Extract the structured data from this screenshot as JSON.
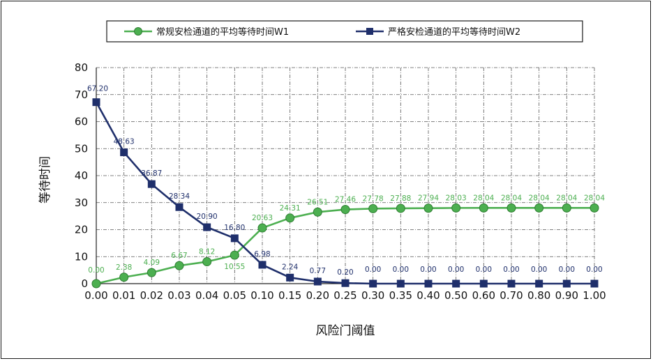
{
  "chart_data": {
    "type": "line",
    "title": "",
    "xlabel": "风险门阈值",
    "ylabel": "等待时间",
    "ylim": [
      0,
      80
    ],
    "yticks": [
      "0",
      "10",
      "20",
      "30",
      "40",
      "50",
      "60",
      "70",
      "80"
    ],
    "grid": true,
    "legend_position": "top",
    "x": [
      "0.00",
      "0.01",
      "0.02",
      "0.03",
      "0.04",
      "0.05",
      "0.10",
      "0.15",
      "0.20",
      "0.25",
      "0.30",
      "0.35",
      "0.40",
      "0.50",
      "0.60",
      "0.70",
      "0.80",
      "0.90",
      "1.00"
    ],
    "series": [
      {
        "name": "常规安检通道的平均等待时间W1",
        "color": "#4caf50",
        "marker": "circle",
        "values": [
          0.0,
          2.38,
          4.09,
          6.67,
          8.12,
          10.55,
          20.63,
          24.31,
          26.51,
          27.46,
          27.78,
          27.88,
          27.94,
          28.03,
          28.04,
          28.04,
          28.04,
          28.04,
          28.04
        ],
        "labels": [
          "0.00",
          "2.38",
          "4.09",
          "6.67",
          "8.12",
          "10.55",
          "20.63",
          "24.31",
          "26.51",
          "27.46",
          "27.78",
          "27.88",
          "27.94",
          "28.03",
          "28.04",
          "28.04",
          "28.04",
          "28.04",
          "28.04"
        ]
      },
      {
        "name": "严格安检通道的平均等待时间W2",
        "color": "#1f2f6b",
        "marker": "square",
        "values": [
          67.2,
          48.63,
          36.87,
          28.34,
          20.9,
          16.8,
          6.98,
          2.24,
          0.77,
          0.2,
          0.0,
          0.0,
          0.0,
          0.0,
          0.0,
          0.0,
          0.0,
          0.0,
          0.0
        ],
        "labels": [
          "67.20",
          "48.63",
          "36.87",
          "28.34",
          "20.90",
          "16.80",
          "6.98",
          "2.24",
          "0.77",
          "0.20",
          "0.00",
          "0.00",
          "0.00",
          "0.00",
          "0.00",
          "0.00",
          "0.00",
          "0.00",
          "0.00"
        ]
      }
    ]
  }
}
